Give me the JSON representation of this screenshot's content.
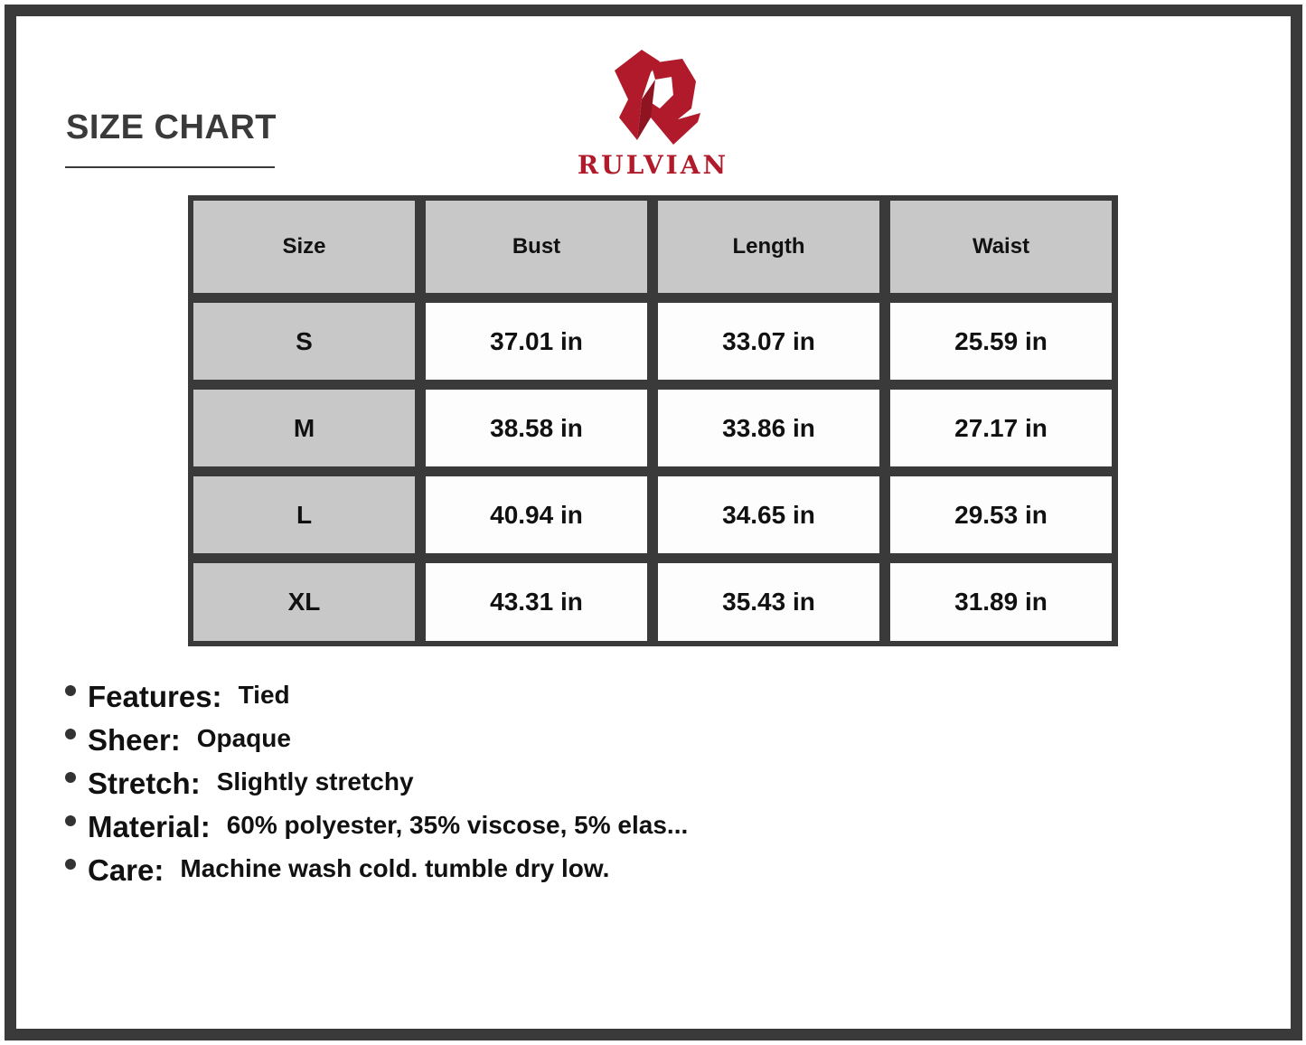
{
  "title": "SIZE CHART",
  "brand": {
    "name": "RULVIAN",
    "color": "#b01a2a"
  },
  "table": {
    "headers": [
      "Size",
      "Bust",
      "Length",
      "Waist"
    ],
    "rows": [
      [
        "S",
        "37.01 in",
        "33.07 in",
        "25.59 in"
      ],
      [
        "M",
        "38.58 in",
        "33.86 in",
        "27.17 in"
      ],
      [
        "L",
        "40.94 in",
        "34.65 in",
        "29.53 in"
      ],
      [
        "XL",
        "43.31 in",
        "35.43 in",
        "31.89 in"
      ]
    ]
  },
  "specs": [
    {
      "label": "Features:",
      "value": "Tied"
    },
    {
      "label": "Sheer:",
      "value": "Opaque"
    },
    {
      "label": "Stretch:",
      "value": "Slightly stretchy"
    },
    {
      "label": "Material:",
      "value": "60% polyester, 35% viscose, 5% elas..."
    },
    {
      "label": "Care:",
      "value": "Machine wash cold. tumble dry low."
    }
  ]
}
